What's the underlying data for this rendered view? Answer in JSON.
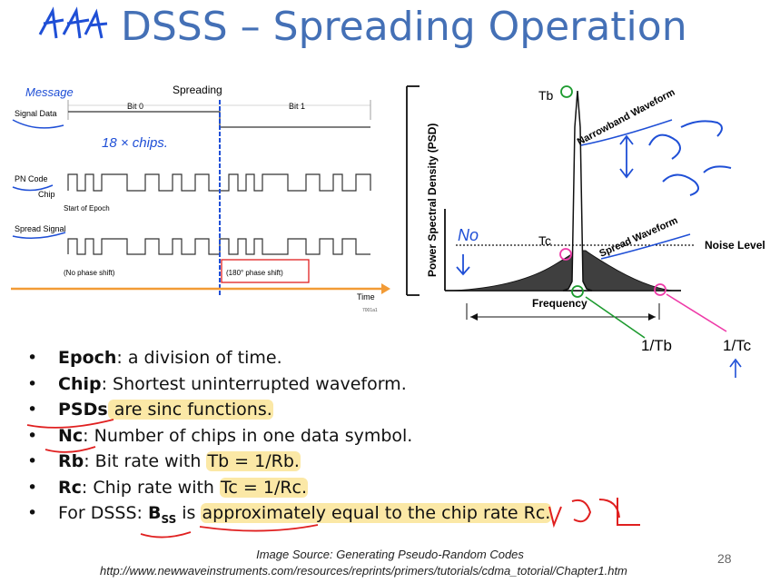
{
  "slide": {
    "title": "DSSS – Spreading Operation",
    "page_number": "28"
  },
  "left_diagram": {
    "heading": "Spreading",
    "bit0": "Bit 0",
    "bit1": "Bit 1",
    "signal_data": "Signal Data",
    "pn_code": "PN Code",
    "chip": "Chip",
    "start_epoch": "Start of Epoch",
    "spread_signal": "Spread Signal",
    "no_phase": "(No phase shift)",
    "phase180": "(180° phase shift)",
    "time": "Time",
    "fig_id": "7001a1"
  },
  "right_diagram": {
    "ylabel": "Power Spectral Density (PSD)",
    "tb": "Tb",
    "tc": "Tc",
    "narrowband": "Narrowband Waveform",
    "spread": "Spread Waveform",
    "noise": "Noise Level",
    "frequency": "Frequency",
    "inv_tb": "1/Tb",
    "inv_tc": "1/Tc"
  },
  "bullets": [
    {
      "bold": "Epoch",
      "rest": ": a division of time."
    },
    {
      "bold": "Chip",
      "rest": ": Shortest uninterrupted waveform."
    },
    {
      "bold": "PSDs",
      "rest": " are sinc functions."
    },
    {
      "bold": "Nc",
      "rest": ": Number of chips in one data symbol."
    },
    {
      "bold": "Rb",
      "rest": ": Bit rate with ",
      "hl": "Tb = 1/Rb."
    },
    {
      "bold": "Rc",
      "rest": ": Chip rate with ",
      "hl": "Tc = 1/Rc."
    },
    {
      "pre": "For DSSS: ",
      "bold": "B",
      "sub": "SS",
      "rest": " is ",
      "hl": "approximately equal to the chip rate Rc."
    }
  ],
  "footer": {
    "source": "Image Source: Generating Pseudo-Random Codes",
    "url": "http://www.newwaveinstruments.com/resources/reprints/primers/tutorials/cdma_totorial/Chapter1.htm"
  },
  "annotations": {
    "message": "Message",
    "chips": "18 × chips.",
    "no": "No",
    "colors": {
      "blue": "#1f4fd6",
      "red": "#e02020",
      "pink": "#ee3aa8",
      "green": "#1c9a2e",
      "orange": "#f29b36"
    }
  }
}
